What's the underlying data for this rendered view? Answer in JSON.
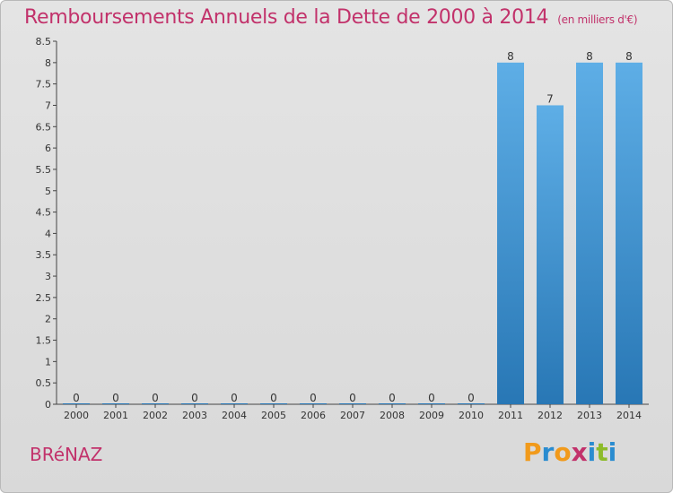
{
  "header": {
    "title": "Remboursements Annuels de la Dette de 2000 à 2014",
    "unit": "(en milliers d'€)"
  },
  "footer": {
    "commune": "BRéNAZ",
    "brand": "Proxiti",
    "brand_colors": [
      "#f19a1b",
      "#2a8cd0",
      "#f19a1b",
      "#c2326b",
      "#2a8cd0",
      "#8dbb2a",
      "#2a8cd0"
    ]
  },
  "colors": {
    "title": "#c2326b",
    "bar_top": "#5eaee6",
    "bar_bottom": "#2877b5",
    "axis": "#444444",
    "text": "#333333"
  },
  "chart_data": {
    "type": "bar",
    "categories": [
      "2000",
      "2001",
      "2002",
      "2003",
      "2004",
      "2005",
      "2006",
      "2007",
      "2008",
      "2009",
      "2010",
      "2011",
      "2012",
      "2013",
      "2014"
    ],
    "values": [
      0,
      0,
      0,
      0,
      0,
      0,
      0,
      0,
      0,
      0,
      0,
      8,
      7,
      8,
      8
    ],
    "data_labels": [
      "0",
      "0",
      "0",
      "0",
      "0",
      "0",
      "0",
      "0",
      "0",
      "0",
      "0",
      "8",
      "7",
      "8",
      "8"
    ],
    "title": "Remboursements Annuels de la Dette de 2000 à 2014",
    "ylim": [
      0,
      8.5
    ],
    "yticks": [
      "0",
      "0.5",
      "1",
      "1.5",
      "2",
      "2.5",
      "3",
      "3.5",
      "4",
      "4.5",
      "5",
      "5.5",
      "6",
      "6.5",
      "7",
      "7.5",
      "8",
      "8.5"
    ],
    "grid": false,
    "legend": "none"
  }
}
